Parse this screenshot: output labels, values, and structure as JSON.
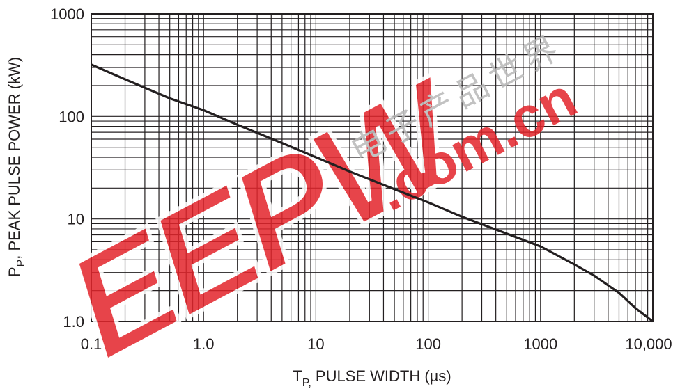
{
  "chart_data": {
    "type": "line",
    "title": "",
    "xlabel": {
      "main": "T",
      "sub": "P,",
      "rest": " PULSE WIDTH (µs)"
    },
    "ylabel": {
      "main": "P",
      "sub": "P",
      "rest": ", PEAK PULSE POWER (kW)"
    },
    "xscale": "log",
    "yscale": "log",
    "xlim": [
      0.1,
      10000
    ],
    "ylim": [
      1,
      1000
    ],
    "grid": true,
    "xticks": [
      0.1,
      1,
      10,
      100,
      1000,
      10000
    ],
    "xtick_labels": [
      "0.1",
      "1.0",
      "10",
      "100",
      "1000",
      "10,000"
    ],
    "yticks": [
      1,
      10,
      100,
      1000
    ],
    "ytick_labels": [
      "1.0",
      "10",
      "100",
      "1000"
    ],
    "series": [
      {
        "x": [
          0.1,
          0.2,
          0.5,
          1,
          2,
          5,
          10,
          20,
          50,
          100,
          200,
          500,
          1000,
          2000,
          3000,
          5000,
          7000,
          10000
        ],
        "y": [
          320,
          230,
          150,
          115,
          83,
          55,
          40,
          29,
          19.5,
          14.5,
          10.5,
          7.2,
          5.4,
          3.6,
          2.8,
          1.9,
          1.35,
          1.0
        ]
      }
    ],
    "watermark": {
      "brand": "EEPW",
      "domain": ".com.cn",
      "chinese": "电子产品世界"
    }
  }
}
